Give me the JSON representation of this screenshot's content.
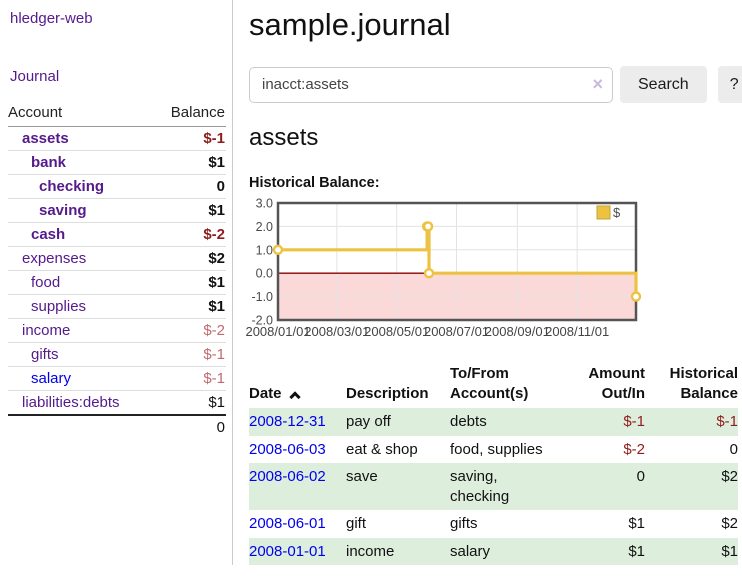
{
  "sidebar": {
    "brand": "hledger-web",
    "journal_link": "Journal",
    "accounts_table": {
      "account_header": "Account",
      "balance_header": "Balance",
      "rows": [
        {
          "name": "assets",
          "balance": "$-1"
        },
        {
          "name": "bank",
          "balance": "$1"
        },
        {
          "name": "checking",
          "balance": "0"
        },
        {
          "name": "saving",
          "balance": "$1"
        },
        {
          "name": "cash",
          "balance": "$-2"
        },
        {
          "name": "expenses",
          "balance": "$2"
        },
        {
          "name": "food",
          "balance": "$1"
        },
        {
          "name": "supplies",
          "balance": "$1"
        },
        {
          "name": "income",
          "balance": "$-2"
        },
        {
          "name": "gifts",
          "balance": "$-1"
        },
        {
          "name": "salary",
          "balance": "$-1"
        },
        {
          "name": "liabilities:debts",
          "balance": "$1"
        }
      ],
      "total": "0"
    }
  },
  "header": {
    "title": "sample.journal"
  },
  "search": {
    "value": "inacct:assets",
    "clear_icon": "×",
    "button_label": "Search",
    "help_label": "?"
  },
  "account_page": {
    "title": "assets",
    "chart_label": "Historical Balance:"
  },
  "chart_data": {
    "type": "line",
    "step": true,
    "series": [
      {
        "name": "$",
        "color": "#edc240",
        "points": [
          [
            "2008-01-01",
            1
          ],
          [
            "2008-06-01",
            2
          ],
          [
            "2008-06-02",
            2
          ],
          [
            "2008-06-03",
            0
          ],
          [
            "2008-12-31",
            -1
          ]
        ]
      }
    ],
    "x_domain": [
      "2008-01-01",
      "2008-12-31"
    ],
    "x_ticks": [
      "2008/01/01",
      "2008/03/01",
      "2008/05/01",
      "2008/07/01",
      "2008/09/01",
      "2008/11/01"
    ],
    "y_ticks": [
      3.0,
      2.0,
      1.0,
      0.0,
      -1.0,
      -2.0
    ],
    "ylim": [
      -2,
      3
    ],
    "grid": true,
    "legend_label": "$",
    "legend_position": "top-right",
    "colors": {
      "negative_region": "#fbd9d9",
      "zero_line": "#8b0000",
      "grid": "#e3e3e3",
      "border": "#545454",
      "tick_label": "#4c4c4c",
      "legend_box_border": "#c2a53c",
      "marker_fill": "#ffffff"
    }
  },
  "register": {
    "columns": [
      "Date",
      "Description",
      "To/From Account(s)",
      "Amount Out/In",
      "Historical Balance"
    ],
    "rows": [
      {
        "date": "2008-12-31",
        "description": "pay off",
        "accounts": "debts",
        "amount": "$-1",
        "balance": "$-1"
      },
      {
        "date": "2008-06-03",
        "description": "eat & shop",
        "accounts": "food, supplies",
        "amount": "$-2",
        "balance": "0"
      },
      {
        "date": "2008-06-02",
        "description": "save",
        "accounts": "saving,\nchecking",
        "amount": "0",
        "balance": "$2"
      },
      {
        "date": "2008-06-01",
        "description": "gift",
        "accounts": "gifts",
        "amount": "$1",
        "balance": "$2"
      },
      {
        "date": "2008-01-01",
        "description": "income",
        "accounts": "salary",
        "amount": "$1",
        "balance": "$1"
      }
    ]
  }
}
